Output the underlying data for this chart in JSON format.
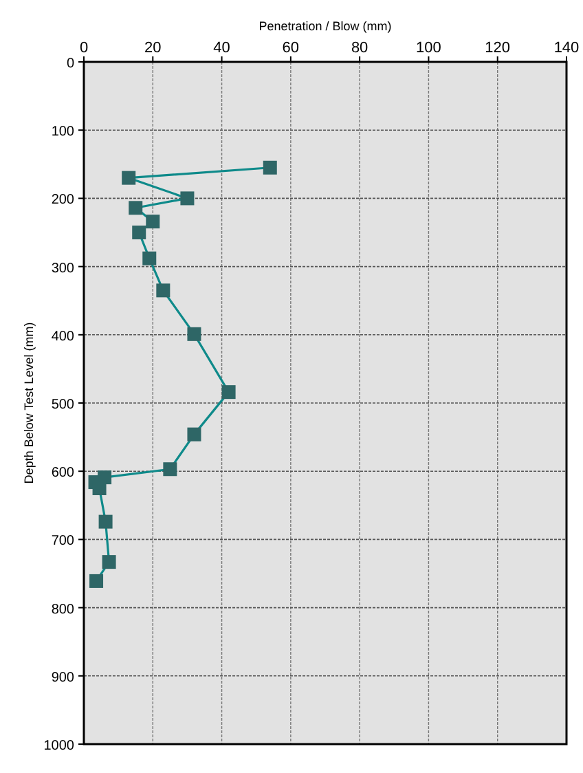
{
  "chart_data": {
    "type": "line",
    "xlabel": "Penetration / Blow (mm)",
    "ylabel": "Depth Below Test Level (mm)",
    "xlim": [
      0,
      140
    ],
    "xticks": [
      0,
      20,
      40,
      60,
      80,
      100,
      120,
      140
    ],
    "ylim": [
      1000,
      0
    ],
    "yticks": [
      0,
      100,
      200,
      300,
      400,
      500,
      600,
      700,
      800,
      900,
      1000
    ],
    "grid": true,
    "marker": "square",
    "line_style": "solid",
    "series": [
      {
        "color": "#2e6666",
        "x": [
          54,
          13,
          30,
          15,
          20,
          16,
          19,
          23,
          32,
          42,
          32,
          25,
          6,
          3.3,
          4.5,
          6.3,
          7.3,
          3.6
        ],
        "values": [
          155,
          170,
          200,
          214,
          234,
          250,
          288,
          335,
          399,
          484,
          546,
          597,
          609,
          616,
          625,
          674,
          733,
          761
        ]
      }
    ]
  }
}
